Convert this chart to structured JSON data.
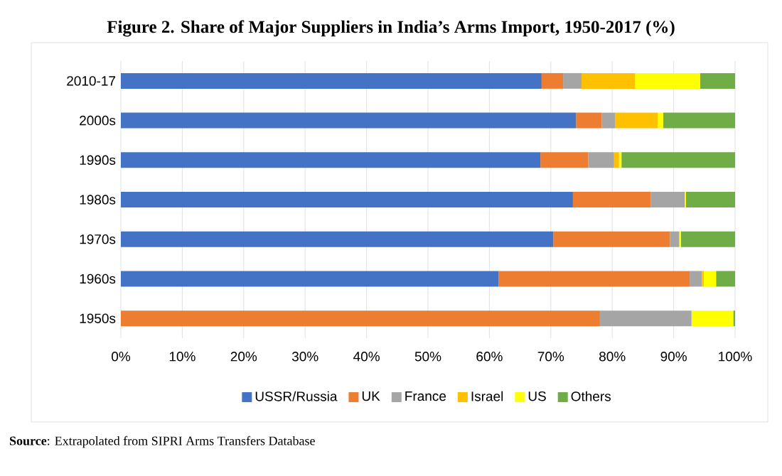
{
  "chart_data": {
    "type": "bar",
    "orientation": "horizontal",
    "stacked": true,
    "title": "Figure 2. Share of Major Suppliers in India’s Arms Import, 1950-2017 (%)",
    "categories": [
      "2010-17",
      "2000s",
      "1990s",
      "1980s",
      "1970s",
      "1960s",
      "1950s"
    ],
    "series": [
      {
        "name": "USSR/Russia",
        "color": "#4472c4",
        "values": [
          68.5,
          74.1,
          68.3,
          73.6,
          70.4,
          61.5,
          0
        ]
      },
      {
        "name": "UK",
        "color": "#ed7d31",
        "values": [
          3.5,
          4.2,
          7.8,
          12.7,
          19.0,
          31.1,
          78.0
        ]
      },
      {
        "name": "France",
        "color": "#a5a5a5",
        "values": [
          3.0,
          2.2,
          4.2,
          5.5,
          1.5,
          2.0,
          14.9
        ]
      },
      {
        "name": "Israel",
        "color": "#ffc000",
        "values": [
          8.7,
          6.9,
          0.8,
          0,
          0,
          0.3,
          0
        ]
      },
      {
        "name": "US",
        "color": "#ffff00",
        "values": [
          10.6,
          0.9,
          0.4,
          0.2,
          0.3,
          2.0,
          6.8
        ]
      },
      {
        "name": "Others",
        "color": "#70ad47",
        "values": [
          5.7,
          11.7,
          18.5,
          8.0,
          8.8,
          3.1,
          0.3
        ]
      }
    ],
    "xlim": [
      0,
      100
    ],
    "xticks": [
      {
        "value": 0,
        "label": "0%"
      },
      {
        "value": 10,
        "label": "10%"
      },
      {
        "value": 20,
        "label": "20%"
      },
      {
        "value": 30,
        "label": "30%"
      },
      {
        "value": 40,
        "label": "40%"
      },
      {
        "value": 50,
        "label": "50%"
      },
      {
        "value": 60,
        "label": "60%"
      },
      {
        "value": 70,
        "label": "70%"
      },
      {
        "value": 80,
        "label": "80%"
      },
      {
        "value": 90,
        "label": "90%"
      },
      {
        "value": 100,
        "label": "100%"
      }
    ],
    "grid": "x",
    "legend": "bottom",
    "annotations": [
      "**Source**: Extrapolated from SIPRI Arms Transfers Database"
    ]
  }
}
